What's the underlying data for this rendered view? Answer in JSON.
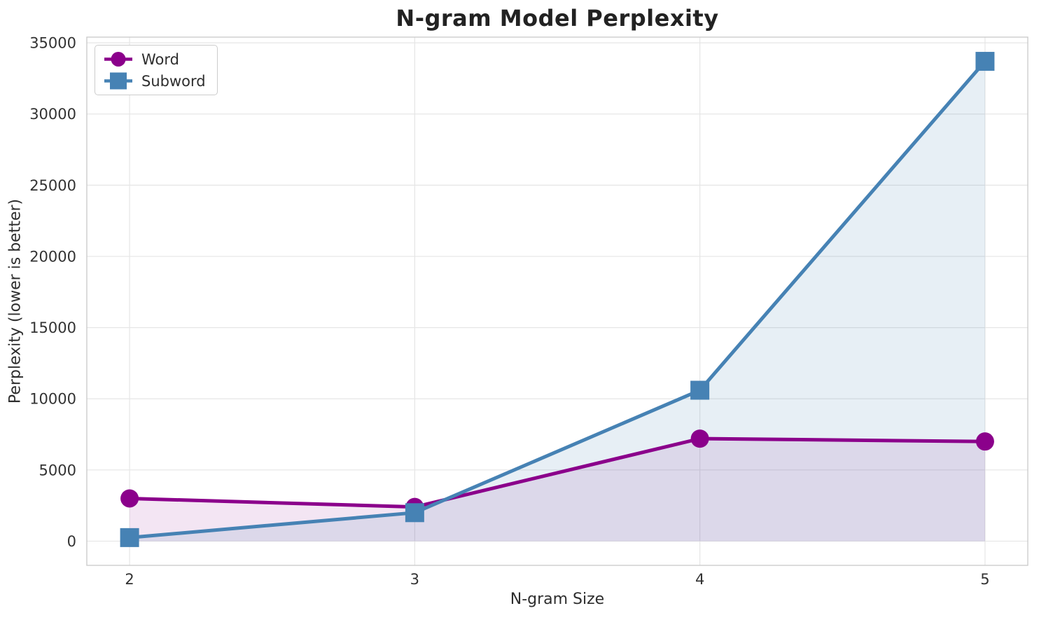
{
  "chart_data": {
    "type": "line",
    "title": "N-gram Model Perplexity",
    "xlabel": "N-gram Size",
    "ylabel": "Perplexity (lower is better)",
    "x": [
      2,
      3,
      4,
      5
    ],
    "xticks": [
      2,
      3,
      4,
      5
    ],
    "yticks": [
      0,
      5000,
      10000,
      15000,
      20000,
      25000,
      30000,
      35000
    ],
    "xlim": [
      1.85,
      5.15
    ],
    "ylim": [
      -1700,
      35400
    ],
    "grid": true,
    "legend_position": "upper left",
    "fill_to_zero": true,
    "series": [
      {
        "name": "Word",
        "marker": "circle",
        "color": "#8b008b",
        "fill_opacity": 0.1,
        "values": [
          3000,
          2400,
          7200,
          7000
        ]
      },
      {
        "name": "Subword",
        "marker": "square",
        "color": "#4682b4",
        "fill_opacity": 0.13,
        "values": [
          250,
          2000,
          10600,
          33700
        ]
      }
    ],
    "colors": {
      "grid": "#e6e6e6",
      "spine": "#cccccc",
      "title_text": "#222222",
      "tick_text": "#333333"
    }
  }
}
